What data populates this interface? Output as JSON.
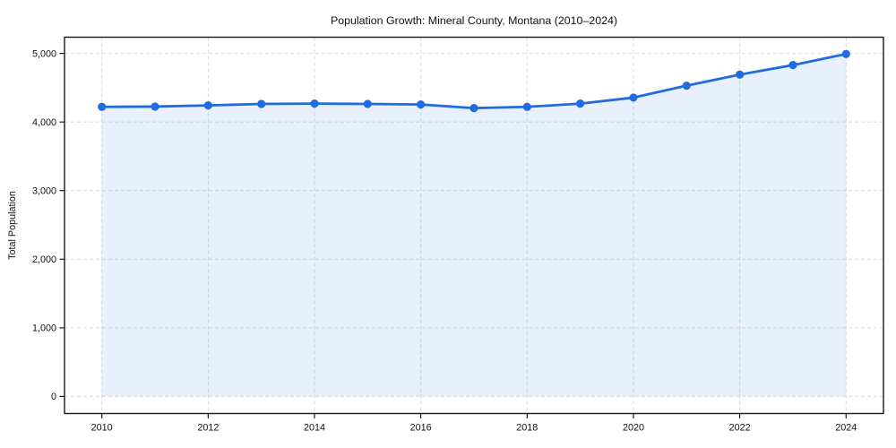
{
  "chart_data": {
    "type": "line",
    "title": "Population Growth: Mineral County, Montana (2010–2024)",
    "xlabel": "",
    "ylabel": "Total Population",
    "x": [
      2010,
      2011,
      2012,
      2013,
      2014,
      2015,
      2016,
      2017,
      2018,
      2019,
      2020,
      2021,
      2022,
      2023,
      2024
    ],
    "values": [
      4221,
      4225,
      4242,
      4264,
      4268,
      4264,
      4255,
      4203,
      4221,
      4268,
      4356,
      4530,
      4691,
      4830,
      4992
    ],
    "series_name": "Total Population",
    "x_ticks": [
      2010,
      2012,
      2014,
      2016,
      2018,
      2020,
      2022,
      2024
    ],
    "x_tick_labels": [
      "2010",
      "2012",
      "2014",
      "2016",
      "2018",
      "2020",
      "2022",
      "2024"
    ],
    "y_ticks": [
      0,
      1000,
      2000,
      3000,
      4000,
      5000
    ],
    "y_tick_labels": [
      "0",
      "1,000",
      "2,000",
      "3,000",
      "4,000",
      "5,000"
    ],
    "xlim": [
      2009.3,
      2024.7
    ],
    "ylim": [
      -250,
      5240
    ],
    "grid": "dashed-both-axes",
    "legend": "none",
    "area_fill": true,
    "marker": "circle",
    "colors": {
      "line": "#1f6ce0",
      "marker": "#1f6ce0",
      "area_fill_effective": "#e8f0fb",
      "grid": "#dbdbdb",
      "axis": "#1a1a1a",
      "text": "#111111",
      "background": "#ffffff"
    }
  }
}
